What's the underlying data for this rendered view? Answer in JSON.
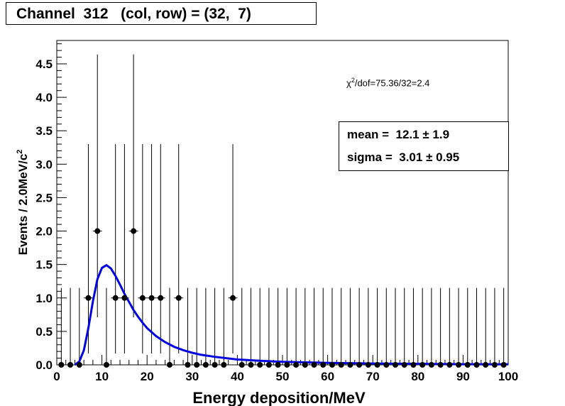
{
  "title": {
    "channel_label": "Channel",
    "channel": "312",
    "colrow_label": "(col, row) =",
    "col": "32",
    "row": "7"
  },
  "fit_quality": {
    "chi2_dof": "75.36/32=2.4"
  },
  "stats": {
    "mean_label": "mean =",
    "mean_value": "12.1",
    "mean_error": "1.9",
    "sigma_label": "sigma =",
    "sigma_value": "3.01",
    "sigma_error": "0.95"
  },
  "colors": {
    "fit_curve": "#0000e0",
    "points": "#000000",
    "axes": "#000000"
  },
  "chart_data": {
    "type": "scatter",
    "xlabel": "Energy deposition/MeV",
    "ylabel": "Events / 2.0MeV/c^2",
    "xlim": [
      0,
      100
    ],
    "ylim": [
      0,
      4.85
    ],
    "x_ticks": [
      0,
      10,
      20,
      30,
      40,
      50,
      60,
      70,
      80,
      90,
      100
    ],
    "y_ticks": [
      0,
      0.5,
      1.0,
      1.5,
      2.0,
      2.5,
      3.0,
      3.5,
      4.0,
      4.5
    ],
    "y_tick_labels": [
      "0.0",
      "0.5",
      "1.0",
      "1.5",
      "2.0",
      "2.5",
      "3.0",
      "3.5",
      "4.0",
      "4.5"
    ],
    "bin_width": 2.0,
    "series": [
      {
        "kind": "data",
        "x": [
          1,
          3,
          5,
          7,
          9,
          11,
          13,
          15,
          17,
          19,
          21,
          23,
          25,
          27,
          29,
          31,
          33,
          35,
          37,
          39,
          41,
          43,
          45,
          47,
          49,
          51,
          53,
          55,
          57,
          59,
          61,
          63,
          65,
          67,
          69,
          71,
          73,
          75,
          77,
          79,
          81,
          83,
          85,
          87,
          89,
          91,
          93,
          95,
          97,
          99
        ],
        "values": [
          0,
          0,
          0,
          1,
          2,
          0,
          1,
          1,
          2,
          1,
          1,
          1,
          0,
          1,
          0,
          0,
          0,
          0,
          0,
          1,
          0,
          0,
          0,
          0,
          0,
          0,
          0,
          0,
          0,
          0,
          0,
          0,
          0,
          0,
          0,
          0,
          0,
          0,
          0,
          0,
          0,
          0,
          0,
          0,
          0,
          0,
          0,
          0,
          0,
          0
        ],
        "error_low": [
          0,
          0,
          0,
          0.83,
          1.29,
          0,
          0.83,
          0.83,
          1.29,
          0.83,
          0.83,
          0.83,
          0,
          0.83,
          0,
          0,
          0,
          0,
          0,
          0.83,
          0,
          0,
          0,
          0,
          0,
          0,
          0,
          0,
          0,
          0,
          0,
          0,
          0,
          0,
          0,
          0,
          0,
          0,
          0,
          0,
          0,
          0,
          0,
          0,
          0,
          0,
          0,
          0,
          0,
          0
        ],
        "error_high": [
          1.15,
          1.15,
          1.15,
          2.3,
          2.64,
          1.15,
          2.3,
          2.3,
          2.64,
          2.3,
          2.3,
          2.3,
          1.15,
          2.3,
          1.15,
          1.15,
          1.15,
          1.15,
          1.15,
          2.3,
          1.15,
          1.15,
          1.15,
          1.15,
          1.15,
          1.15,
          1.15,
          1.15,
          1.15,
          1.15,
          1.15,
          1.15,
          1.15,
          1.15,
          1.15,
          1.15,
          1.15,
          1.15,
          1.15,
          1.15,
          1.15,
          1.15,
          1.15,
          1.15,
          1.15,
          1.15,
          1.15,
          1.15,
          1.15,
          1.15
        ]
      },
      {
        "kind": "fit",
        "x": [
          4,
          5,
          6,
          7,
          8,
          9,
          10,
          11,
          12,
          13,
          14,
          15,
          16,
          17,
          18,
          19,
          20,
          22,
          24,
          26,
          28,
          30,
          32,
          35,
          40,
          45,
          50,
          60,
          70,
          80,
          90,
          100
        ],
        "values": [
          0,
          0.05,
          0.22,
          0.55,
          0.95,
          1.28,
          1.45,
          1.49,
          1.44,
          1.33,
          1.2,
          1.06,
          0.94,
          0.82,
          0.72,
          0.63,
          0.55,
          0.43,
          0.34,
          0.27,
          0.22,
          0.18,
          0.15,
          0.12,
          0.08,
          0.06,
          0.045,
          0.03,
          0.02,
          0.015,
          0.01,
          0.008
        ]
      }
    ]
  }
}
